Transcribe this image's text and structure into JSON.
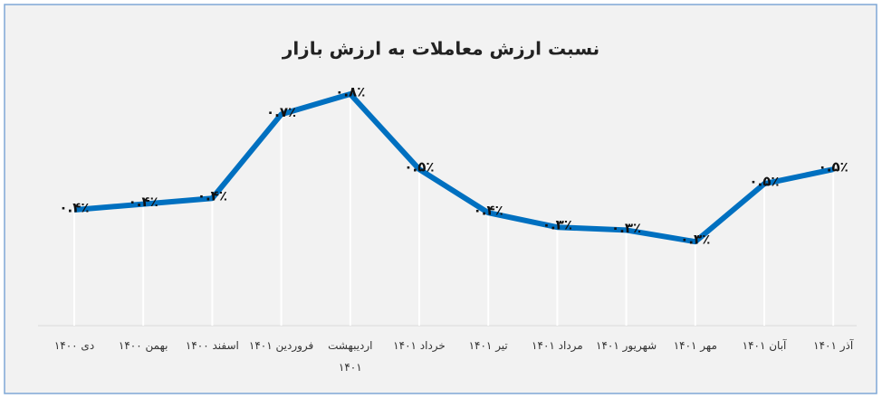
{
  "chart_data": {
    "type": "line",
    "title": "نسبت ارزش معاملات به ارزش بازار",
    "categories": [
      "دی ۱۴۰۰",
      "بهمن ۱۴۰۰",
      "اسفند ۱۴۰۰",
      "فروردین ۱۴۰۱",
      "اردیبهشت ۱۴۰۱",
      "خرداد ۱۴۰۱",
      "تیر ۱۴۰۱",
      "مرداد ۱۴۰۱",
      "شهریور ۱۴۰۱",
      "مهر ۱۴۰۱",
      "آبان ۱۴۰۱",
      "آذر ۱۴۰۱"
    ],
    "values": [
      0.4,
      0.42,
      0.44,
      0.73,
      0.8,
      0.54,
      0.39,
      0.34,
      0.33,
      0.29,
      0.49,
      0.54
    ],
    "value_labels": [
      "۰.۴٪",
      "۰.۴٪",
      "۰.۴٪",
      "۰.۷٪",
      "۰.۸٪",
      "۰.۵٪",
      "۰.۴٪",
      "۰.۳٪",
      "۰.۳٪",
      "۰.۳٪",
      "۰.۵٪",
      "۰.۵٪"
    ],
    "color": "#0070c0"
  }
}
